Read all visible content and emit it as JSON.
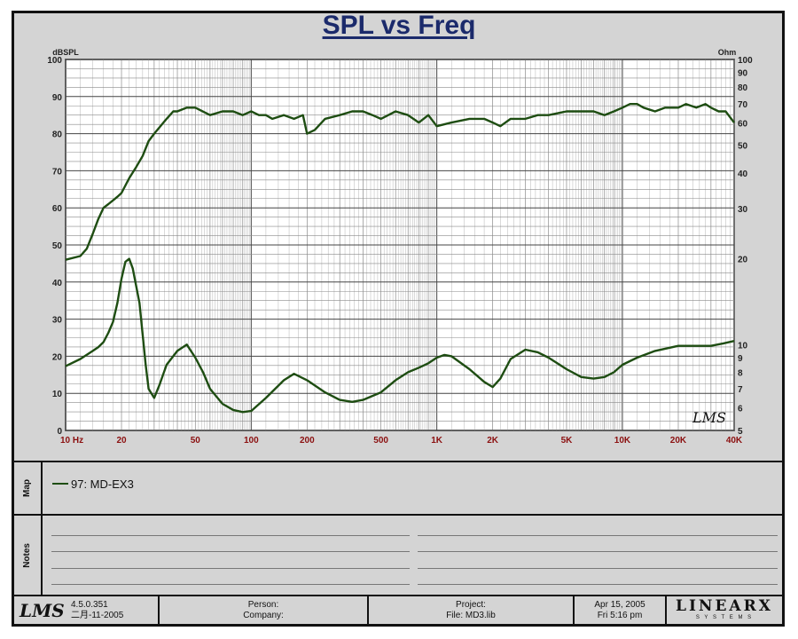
{
  "chart_data": {
    "type": "line",
    "title": "SPL vs Freq",
    "left_axis": {
      "unit": "dBSPL",
      "range": [
        0,
        100
      ],
      "ticks": [
        "0",
        "10",
        "20",
        "30",
        "40",
        "50",
        "60",
        "70",
        "80",
        "90",
        "100"
      ]
    },
    "right_axis": {
      "unit": "Ohm",
      "scale": "log",
      "range": [
        5,
        100
      ],
      "ticks": [
        "5",
        "6",
        "7",
        "8",
        "9",
        "10",
        "20",
        "30",
        "40",
        "50",
        "60",
        "70",
        "80",
        "90",
        "100"
      ]
    },
    "x_axis": {
      "scale": "log",
      "range": [
        10,
        40000
      ],
      "ticks": [
        {
          "value": 10,
          "label": "10  Hz"
        },
        {
          "value": 20,
          "label": "20"
        },
        {
          "value": 50,
          "label": "50"
        },
        {
          "value": 100,
          "label": "100"
        },
        {
          "value": 200,
          "label": "200"
        },
        {
          "value": 500,
          "label": "500"
        },
        {
          "value": 1000,
          "label": "1K"
        },
        {
          "value": 2000,
          "label": "2K"
        },
        {
          "value": 5000,
          "label": "5K"
        },
        {
          "value": 10000,
          "label": "10K"
        },
        {
          "value": 20000,
          "label": "20K"
        },
        {
          "value": 40000,
          "label": "40K"
        }
      ]
    },
    "grid": true,
    "series": [
      {
        "axis": "left",
        "color": "#1e4d12",
        "x": [
          10,
          12,
          13,
          14,
          15,
          16,
          17,
          18,
          19,
          20,
          22,
          24,
          26,
          28,
          30,
          35,
          38,
          40,
          45,
          50,
          60,
          70,
          80,
          90,
          100,
          110,
          120,
          130,
          150,
          170,
          190,
          200,
          220,
          250,
          300,
          350,
          400,
          450,
          500,
          600,
          700,
          800,
          900,
          1000,
          1200,
          1500,
          1800,
          2000,
          2200,
          2500,
          3000,
          3500,
          4000,
          5000,
          6000,
          7000,
          8000,
          9000,
          10000,
          11000,
          12000,
          13000,
          15000,
          17000,
          20000,
          22000,
          25000,
          28000,
          30000,
          33000,
          36000,
          40000
        ],
        "values": [
          46,
          47,
          49,
          53,
          57,
          60,
          61,
          62,
          63,
          64,
          68,
          71,
          74,
          78,
          80,
          84,
          86,
          86,
          87,
          87,
          85,
          86,
          86,
          85,
          86,
          85,
          85,
          84,
          85,
          84,
          85,
          80,
          81,
          84,
          85,
          86,
          86,
          85,
          84,
          86,
          85,
          83,
          85,
          82,
          83,
          84,
          84,
          83,
          82,
          84,
          84,
          85,
          85,
          86,
          86,
          86,
          85,
          86,
          87,
          88,
          88,
          87,
          86,
          87,
          87,
          88,
          87,
          88,
          87,
          86,
          86,
          83
        ]
      },
      {
        "axis": "right",
        "color": "#1e4d12",
        "x": [
          10,
          12,
          14,
          15,
          16,
          17,
          18,
          19,
          20,
          21,
          22,
          23,
          25,
          27,
          28,
          30,
          32,
          35,
          40,
          45,
          50,
          55,
          60,
          70,
          80,
          90,
          100,
          120,
          150,
          170,
          200,
          250,
          300,
          350,
          400,
          500,
          600,
          700,
          800,
          900,
          1000,
          1100,
          1200,
          1500,
          1800,
          2000,
          2200,
          2500,
          3000,
          3500,
          4000,
          5000,
          6000,
          7000,
          8000,
          9000,
          10000,
          12000,
          15000,
          20000,
          25000,
          30000,
          35000,
          40000
        ],
        "values": [
          8.4,
          8.9,
          9.5,
          9.8,
          10.2,
          11,
          12,
          14,
          17,
          19.5,
          20,
          18.5,
          14,
          8.5,
          7,
          6.5,
          7.2,
          8.5,
          9.5,
          10,
          9,
          8,
          7,
          6.2,
          5.9,
          5.8,
          5.85,
          6.5,
          7.5,
          7.9,
          7.5,
          6.8,
          6.4,
          6.3,
          6.4,
          6.8,
          7.5,
          8.0,
          8.3,
          8.6,
          9.0,
          9.2,
          9.1,
          8.2,
          7.4,
          7.1,
          7.6,
          8.9,
          9.6,
          9.4,
          9.0,
          8.2,
          7.7,
          7.6,
          7.7,
          8.0,
          8.5,
          9.0,
          9.5,
          9.9,
          9.9,
          9.9,
          10.1,
          10.3
        ]
      }
    ]
  },
  "watermark": "LMS",
  "map_panel": {
    "label": "Map",
    "legend_text": "97: MD-EX3"
  },
  "notes_panel": {
    "label": "Notes"
  },
  "footer": {
    "logo": "LMS",
    "version": "4.5.0.351",
    "date": "二月-11-2005",
    "person_label": "Person:",
    "company_label": "Company:",
    "project_label": "Project:",
    "file_label": "File: MD3.lib",
    "date_line1": "Apr 15, 2005",
    "date_line2": "Fri   5:16 pm",
    "brand": "LINEARX",
    "brand_sub": "S Y S T E M S"
  }
}
